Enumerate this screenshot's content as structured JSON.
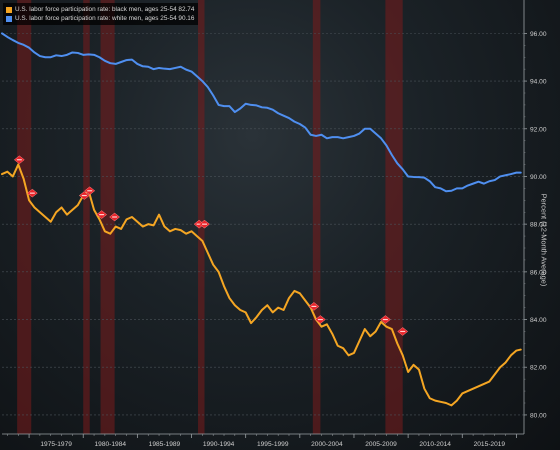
{
  "legend": {
    "black_men": "U.S. labor force participation rate: black men, ages 25-54 82.74",
    "white_men": "U.S. labor force participation rate: white men, ages 25-54 90.16"
  },
  "colors": {
    "black_men": "#f5a623",
    "white_men": "#4f8ff0",
    "recession": "#7a1c1c",
    "marker": "#e8242a"
  },
  "chart_data": {
    "type": "line",
    "ylabel": "Percent (12-Month Average)",
    "ylim": [
      79.2,
      97.4
    ],
    "yticks": [
      "80.00",
      "82.00",
      "84.00",
      "86.00",
      "88.00",
      "90.00",
      "92.00",
      "94.00",
      "96.00"
    ],
    "xlim": [
      1972.5,
      2020.7
    ],
    "xticks": [
      "1975-1979",
      "1980-1984",
      "1985-1989",
      "1990-1994",
      "1995-1999",
      "2000-2004",
      "2005-2009",
      "2010-2014",
      "2015-2019"
    ],
    "recessions": [
      [
        1973.9,
        1975.2
      ],
      [
        1980.0,
        1980.6
      ],
      [
        1981.6,
        1982.9
      ],
      [
        1990.6,
        1991.2
      ],
      [
        2001.2,
        2001.9
      ],
      [
        2007.9,
        2009.5
      ]
    ],
    "series": [
      {
        "name": "U.S. labor force participation rate: white men, ages 25-54",
        "x": [
          1972.5,
          1973.0,
          1973.5,
          1974.0,
          1974.5,
          1975.0,
          1975.5,
          1976.0,
          1976.5,
          1977.0,
          1977.5,
          1978.0,
          1978.5,
          1979.0,
          1979.5,
          1980.0,
          1980.5,
          1981.0,
          1981.5,
          1982.0,
          1982.5,
          1983.0,
          1983.5,
          1984.0,
          1984.5,
          1985.0,
          1985.5,
          1986.0,
          1986.5,
          1987.0,
          1987.5,
          1988.0,
          1988.5,
          1989.0,
          1989.5,
          1990.0,
          1990.5,
          1991.0,
          1991.5,
          1992.0,
          1992.5,
          1993.0,
          1993.5,
          1994.0,
          1994.5,
          1995.0,
          1995.5,
          1996.0,
          1996.5,
          1997.0,
          1997.5,
          1998.0,
          1998.5,
          1999.0,
          1999.5,
          2000.0,
          2000.5,
          2001.0,
          2001.5,
          2002.0,
          2002.5,
          2003.0,
          2003.5,
          2004.0,
          2004.5,
          2005.0,
          2005.5,
          2006.0,
          2006.5,
          2007.0,
          2007.5,
          2008.0,
          2008.5,
          2009.0,
          2009.5,
          2010.0,
          2010.5,
          2011.0,
          2011.5,
          2012.0,
          2012.5,
          2013.0,
          2013.5,
          2014.0,
          2014.5,
          2015.0,
          2015.5,
          2016.0,
          2016.5,
          2017.0,
          2017.5,
          2018.0,
          2018.5,
          2019.0,
          2019.5,
          2020.0,
          2020.4
        ],
        "values": [
          96.0,
          95.85,
          95.72,
          95.6,
          95.52,
          95.4,
          95.2,
          95.05,
          95.0,
          95.0,
          95.08,
          95.05,
          95.1,
          95.2,
          95.18,
          95.1,
          95.12,
          95.1,
          95.0,
          94.85,
          94.75,
          94.72,
          94.8,
          94.88,
          94.9,
          94.72,
          94.62,
          94.6,
          94.5,
          94.55,
          94.52,
          94.5,
          94.55,
          94.6,
          94.48,
          94.4,
          94.2,
          94.0,
          93.75,
          93.4,
          93.0,
          92.95,
          92.95,
          92.7,
          92.85,
          93.05,
          93.0,
          92.98,
          92.9,
          92.88,
          92.8,
          92.65,
          92.55,
          92.45,
          92.3,
          92.2,
          92.05,
          91.75,
          91.7,
          91.75,
          91.6,
          91.65,
          91.65,
          91.6,
          91.65,
          91.7,
          91.8,
          92.0,
          92.0,
          91.8,
          91.6,
          91.3,
          90.9,
          90.55,
          90.3,
          90.0,
          89.98,
          89.97,
          89.95,
          89.8,
          89.55,
          89.5,
          89.38,
          89.4,
          89.5,
          89.5,
          89.62,
          89.7,
          89.78,
          89.7,
          89.8,
          89.85,
          90.0,
          90.05,
          90.1,
          90.16,
          90.16
        ]
      },
      {
        "name": "U.S. labor force participation rate: black men, ages 25-54",
        "x": [
          1972.5,
          1973.0,
          1973.5,
          1974.0,
          1974.5,
          1975.0,
          1975.5,
          1976.0,
          1976.5,
          1977.0,
          1977.5,
          1978.0,
          1978.5,
          1979.0,
          1979.5,
          1980.0,
          1980.5,
          1981.0,
          1981.5,
          1982.0,
          1982.5,
          1983.0,
          1983.5,
          1984.0,
          1984.5,
          1985.0,
          1985.5,
          1986.0,
          1986.5,
          1987.0,
          1987.5,
          1988.0,
          1988.5,
          1989.0,
          1989.5,
          1990.0,
          1990.5,
          1991.0,
          1991.5,
          1992.0,
          1992.5,
          1993.0,
          1993.5,
          1994.0,
          1994.5,
          1995.0,
          1995.5,
          1996.0,
          1996.5,
          1997.0,
          1997.5,
          1998.0,
          1998.5,
          1999.0,
          1999.5,
          2000.0,
          2000.5,
          2001.0,
          2001.5,
          2002.0,
          2002.5,
          2003.0,
          2003.5,
          2004.0,
          2004.5,
          2005.0,
          2005.5,
          2006.0,
          2006.5,
          2007.0,
          2007.5,
          2008.0,
          2008.5,
          2009.0,
          2009.5,
          2010.0,
          2010.5,
          2011.0,
          2011.5,
          2012.0,
          2012.5,
          2013.0,
          2013.5,
          2014.0,
          2014.5,
          2015.0,
          2015.5,
          2016.0,
          2016.5,
          2017.0,
          2017.5,
          2018.0,
          2018.5,
          2019.0,
          2019.5,
          2020.0,
          2020.4
        ],
        "values": [
          90.1,
          90.2,
          90.0,
          90.5,
          89.9,
          89.0,
          88.7,
          88.5,
          88.3,
          88.1,
          88.5,
          88.7,
          88.4,
          88.6,
          88.8,
          89.2,
          89.4,
          88.6,
          88.2,
          87.7,
          87.6,
          87.9,
          87.8,
          88.2,
          88.3,
          88.1,
          87.9,
          88.0,
          87.95,
          88.4,
          87.9,
          87.7,
          87.8,
          87.75,
          87.6,
          87.7,
          87.5,
          87.3,
          86.8,
          86.3,
          86.0,
          85.4,
          84.9,
          84.6,
          84.4,
          84.3,
          83.85,
          84.1,
          84.4,
          84.6,
          84.3,
          84.5,
          84.4,
          84.9,
          85.2,
          85.1,
          84.8,
          84.5,
          84.0,
          83.7,
          83.8,
          83.4,
          82.9,
          82.8,
          82.5,
          82.6,
          83.1,
          83.6,
          83.3,
          83.5,
          83.9,
          83.7,
          83.6,
          83.0,
          82.5,
          81.8,
          82.1,
          81.9,
          81.1,
          80.7,
          80.6,
          80.55,
          80.5,
          80.4,
          80.6,
          80.9,
          81.0,
          81.1,
          81.2,
          81.3,
          81.4,
          81.7,
          82.0,
          82.2,
          82.5,
          82.7,
          82.74
        ]
      }
    ],
    "markers": [
      {
        "x": 1974.1,
        "y": 90.7
      },
      {
        "x": 1975.3,
        "y": 89.3
      },
      {
        "x": 1980.1,
        "y": 89.2
      },
      {
        "x": 1980.6,
        "y": 89.4
      },
      {
        "x": 1981.7,
        "y": 88.4
      },
      {
        "x": 1982.9,
        "y": 88.3
      },
      {
        "x": 1990.7,
        "y": 88.0
      },
      {
        "x": 1991.2,
        "y": 88.0
      },
      {
        "x": 2001.3,
        "y": 84.55
      },
      {
        "x": 2001.9,
        "y": 84.0
      },
      {
        "x": 2007.9,
        "y": 84.0
      },
      {
        "x": 2009.5,
        "y": 83.5
      }
    ]
  }
}
